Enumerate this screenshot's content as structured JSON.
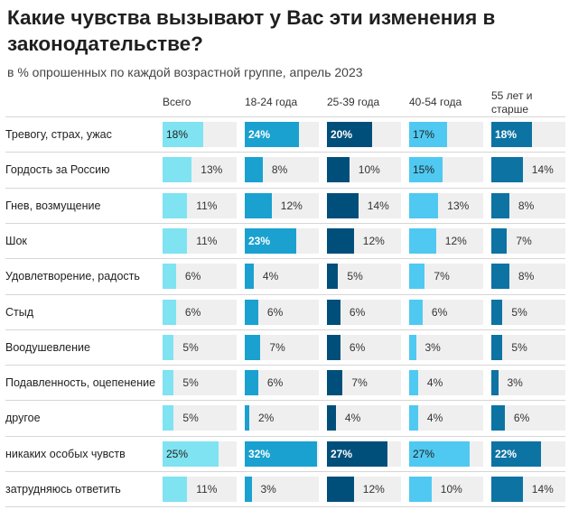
{
  "title": "Какие чувства вызывают у Вас эти изменения в законодательстве?",
  "subtitle": "в %% опрошенных по каждой возрастной группе, апрель 2023",
  "chart_data": {
    "type": "bar",
    "groups": [
      {
        "name": "Всего",
        "color": "#7fe3f1"
      },
      {
        "name": "18-24 года",
        "color": "#1aa1cf"
      },
      {
        "name": "25-39 года",
        "color": "#004f7b"
      },
      {
        "name": "40-54 года",
        "color": "#4fc9f1"
      },
      {
        "name": "55 лет и старше",
        "color": "#0d73a3"
      }
    ],
    "categories": [
      "Тревогу, страх, ужас",
      "Гордость за Россию",
      "Гнев, возмущение",
      "Шок",
      "Удовлетворение, радость",
      "Стыд",
      "Воодушевление",
      "Подавленность, оцепенение",
      "другое",
      "никаких особых чувств",
      "затрудняюсь ответить"
    ],
    "series": [
      {
        "name": "Всего",
        "values": [
          18,
          13,
          11,
          11,
          6,
          6,
          5,
          5,
          5,
          25,
          11
        ]
      },
      {
        "name": "18-24 года",
        "values": [
          24,
          8,
          12,
          23,
          4,
          6,
          7,
          6,
          2,
          32,
          3
        ]
      },
      {
        "name": "25-39 года",
        "values": [
          20,
          10,
          14,
          12,
          5,
          6,
          6,
          7,
          4,
          27,
          12
        ]
      },
      {
        "name": "40-54 года",
        "values": [
          17,
          15,
          13,
          12,
          7,
          6,
          3,
          4,
          4,
          27,
          10
        ]
      },
      {
        "name": "55 лет и старше",
        "values": [
          18,
          14,
          8,
          7,
          8,
          5,
          5,
          3,
          6,
          22,
          14
        ]
      }
    ],
    "value_suffix": "%",
    "xlim": [
      0,
      33
    ]
  }
}
